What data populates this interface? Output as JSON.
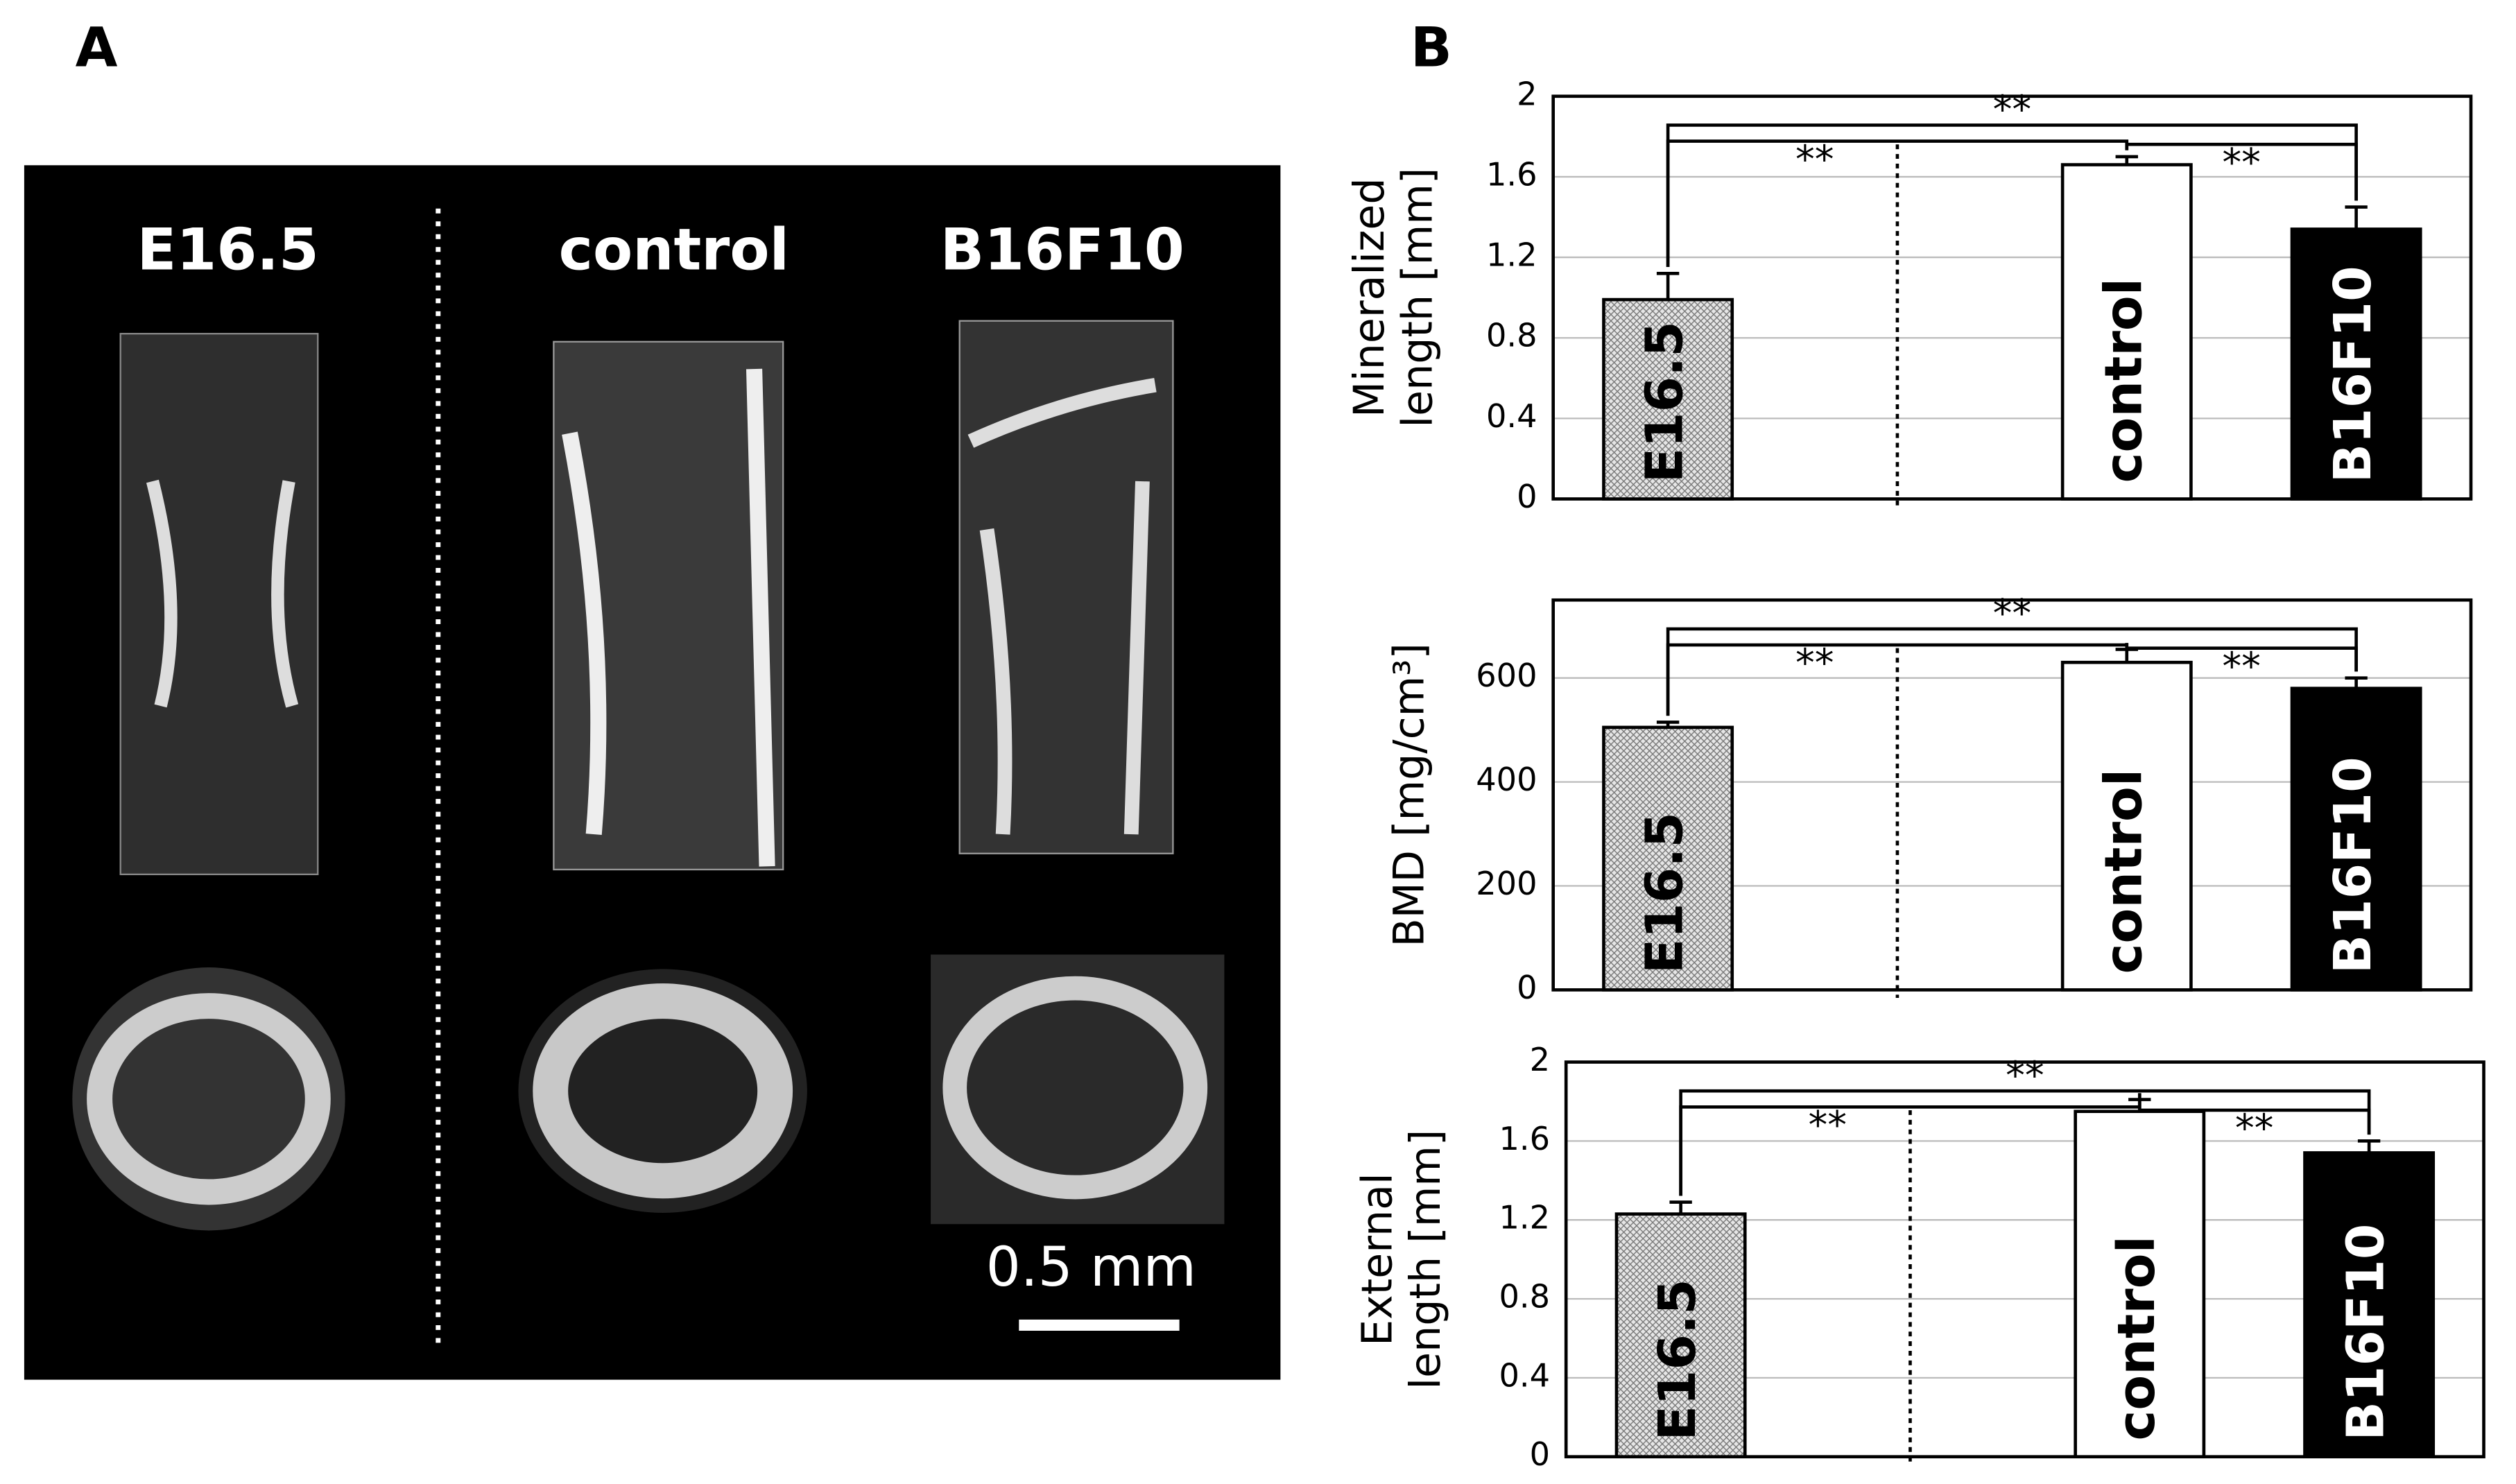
{
  "panel_labels": [
    "A",
    "B"
  ],
  "panel_a": {
    "columns": [
      "E16.5",
      "control",
      "B16F10"
    ],
    "scale_bar": "0.5 mm"
  },
  "chart_data": [
    {
      "type": "bar",
      "ylabel": [
        "Mineralized",
        "length [mm]"
      ],
      "categories": [
        "E16.5",
        null,
        "control",
        "B16F10"
      ],
      "values": [
        0.99,
        null,
        1.66,
        1.34
      ],
      "errors": [
        0.13,
        null,
        0.04,
        0.11
      ],
      "colors": [
        "#d9d9d9",
        null,
        "#ffffff",
        "#000000"
      ],
      "ylim": [
        0,
        2
      ],
      "yticks": [
        0,
        0.4,
        0.8,
        1.2,
        1.6,
        2
      ],
      "grid": true,
      "annotations": [
        "**",
        "**",
        "**"
      ]
    },
    {
      "type": "bar",
      "ylabel": [
        "BMD [mg/cm³]"
      ],
      "categories": [
        "E16.5",
        null,
        "control",
        "B16F10"
      ],
      "values": [
        505,
        null,
        630,
        580
      ],
      "errors": [
        10,
        null,
        25,
        20
      ],
      "colors": [
        "#d9d9d9",
        null,
        "#ffffff",
        "#000000"
      ],
      "ylim": [
        0,
        750
      ],
      "yticks": [
        0,
        200,
        400,
        600
      ],
      "grid": true,
      "annotations": [
        "**",
        "**",
        "**"
      ]
    },
    {
      "type": "bar",
      "ylabel": [
        "External",
        "length [mm]"
      ],
      "categories": [
        "E16.5",
        null,
        "control",
        "B16F10"
      ],
      "values": [
        1.23,
        null,
        1.75,
        1.54
      ],
      "errors": [
        0.06,
        null,
        0.06,
        0.06
      ],
      "colors": [
        "#d9d9d9",
        null,
        "#ffffff",
        "#000000"
      ],
      "ylim": [
        0,
        2
      ],
      "yticks": [
        0,
        0.4,
        0.8,
        1.2,
        1.6,
        2
      ],
      "grid": true,
      "annotations": [
        "**",
        "**",
        "**"
      ]
    }
  ]
}
